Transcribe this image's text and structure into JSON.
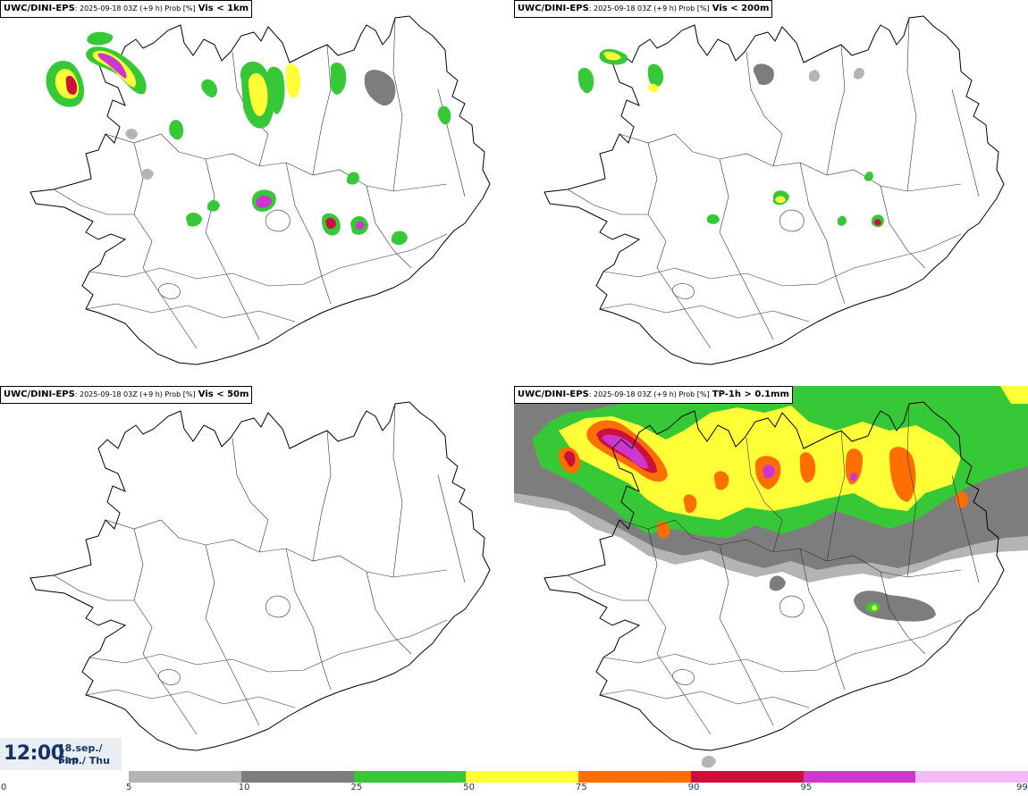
{
  "panels": [
    {
      "model": "UWC/DINI-EPS",
      "run": ": 2025-09-18 03Z (+9 h) Prob [%]",
      "threshold": "Vis < 1km"
    },
    {
      "model": "UWC/DINI-EPS",
      "run": ": 2025-09-18 03Z (+9 h) Prob [%]",
      "threshold": "Vis < 200m"
    },
    {
      "model": "UWC/DINI-EPS",
      "run": ": 2025-09-18 03Z (+9 h) Prob [%]",
      "threshold": "Vis < 50m"
    },
    {
      "model": "UWC/DINI-EPS",
      "run": ": 2025-09-18 03Z (+9 h) Prob [%]",
      "threshold": "TP-1h > 0.1mm"
    }
  ],
  "valid_time": {
    "time": "12:00",
    "date_line1": "18.sep./ Sep",
    "date_line2": "Fim./ Thu"
  },
  "legend": {
    "labels": [
      "0",
      "5",
      "10",
      "25",
      "50",
      "75",
      "90",
      "95",
      "99"
    ],
    "colors": [
      "#b4b4b4",
      "#7d7d7d",
      "#37c837",
      "#ffff37",
      "#ff6e00",
      "#cd0f3c",
      "#cd37cd",
      "#f5b9f5"
    ]
  }
}
